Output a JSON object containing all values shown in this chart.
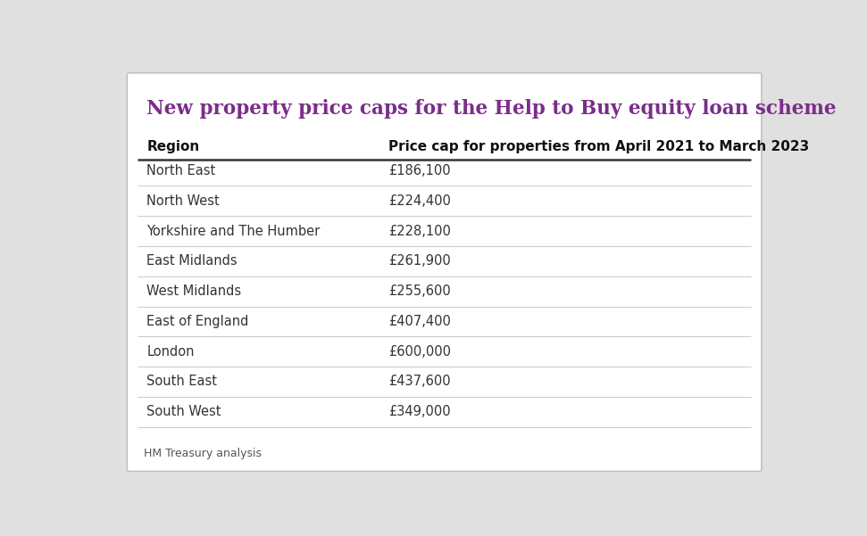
{
  "title": "New property price caps for the Help to Buy equity loan scheme",
  "title_color": "#7b2d8b",
  "col1_header": "Region",
  "col2_header": "Price cap for properties from April 2021 to March 2023",
  "rows": [
    [
      "North East",
      "£186,100"
    ],
    [
      "North West",
      "£224,400"
    ],
    [
      "Yorkshire and The Humber",
      "£228,100"
    ],
    [
      "East Midlands",
      "£261,900"
    ],
    [
      "West Midlands",
      "£255,600"
    ],
    [
      "East of England",
      "£407,400"
    ],
    [
      "London",
      "£600,000"
    ],
    [
      "South East",
      "£437,600"
    ],
    [
      "South West",
      "£349,000"
    ]
  ],
  "footer": "HM Treasury analysis",
  "bg_color": "#ffffff",
  "outer_bg": "#e0e0e0",
  "border_color": "#cccccc",
  "header_line_color": "#333333",
  "row_line_color": "#cccccc",
  "col_split": 0.365
}
